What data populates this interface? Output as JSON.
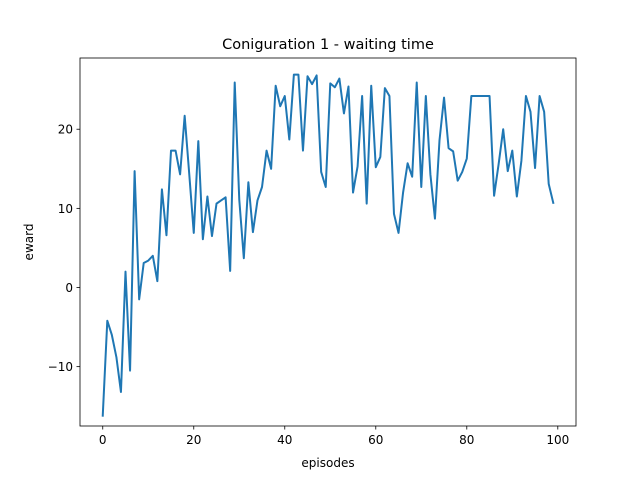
{
  "chart_data": {
    "type": "line",
    "title": "Coniguration 1 - waiting time",
    "xlabel": "episodes",
    "ylabel": "eward",
    "xlim": [
      -5,
      104
    ],
    "ylim": [
      -17.5,
      29.0
    ],
    "xticks": [
      0,
      20,
      40,
      60,
      80,
      100
    ],
    "yticks": [
      -10,
      0,
      10,
      20
    ],
    "ytick_labels": [
      "−10",
      "0",
      "10",
      "20"
    ],
    "grid": false,
    "series": [
      {
        "color": "#1f77b4",
        "x": [
          0,
          1,
          2,
          3,
          4,
          5,
          6,
          7,
          8,
          9,
          10,
          11,
          12,
          13,
          14,
          15,
          16,
          17,
          18,
          19,
          20,
          21,
          22,
          23,
          24,
          25,
          26,
          27,
          28,
          29,
          30,
          31,
          32,
          33,
          34,
          35,
          36,
          37,
          38,
          39,
          40,
          41,
          42,
          43,
          44,
          45,
          46,
          47,
          48,
          49,
          50,
          51,
          52,
          53,
          54,
          55,
          56,
          57,
          58,
          59,
          60,
          61,
          62,
          63,
          64,
          65,
          66,
          67,
          68,
          69,
          70,
          71,
          72,
          73,
          74,
          75,
          76,
          77,
          78,
          79,
          80,
          81,
          82,
          83,
          84,
          85,
          86,
          87,
          88,
          89,
          90,
          91,
          92,
          93,
          94,
          95,
          96,
          97,
          98,
          99
        ],
        "values": [
          -16.2,
          -4.2,
          -6.0,
          -8.8,
          -13.2,
          2.0,
          -10.5,
          14.7,
          -1.5,
          3.1,
          3.4,
          4.0,
          0.8,
          12.4,
          6.6,
          17.3,
          17.3,
          14.3,
          21.7,
          14.4,
          6.9,
          18.5,
          6.1,
          11.5,
          6.5,
          10.6,
          11.0,
          11.4,
          2.1,
          25.9,
          11.1,
          3.7,
          13.3,
          7.0,
          11.0,
          12.7,
          17.3,
          15.0,
          25.5,
          22.9,
          24.2,
          18.7,
          26.9,
          26.9,
          17.3,
          26.7,
          25.7,
          26.8,
          14.6,
          12.7,
          25.8,
          25.3,
          26.4,
          22.0,
          25.4,
          12.0,
          15.3,
          24.2,
          10.6,
          25.5,
          15.2,
          16.5,
          25.2,
          24.2,
          9.3,
          6.9,
          12.0,
          15.7,
          14.0,
          25.9,
          12.7,
          24.2,
          14.3,
          8.7,
          18.6,
          24.0,
          17.6,
          17.2,
          13.5,
          14.6,
          16.3,
          24.2,
          24.2,
          24.2,
          24.2,
          24.2,
          11.6,
          15.6,
          20.0,
          14.7,
          17.3,
          11.5,
          16.0,
          24.2,
          22.2,
          15.1,
          24.2,
          22.2,
          13.1,
          10.7
        ]
      }
    ]
  }
}
